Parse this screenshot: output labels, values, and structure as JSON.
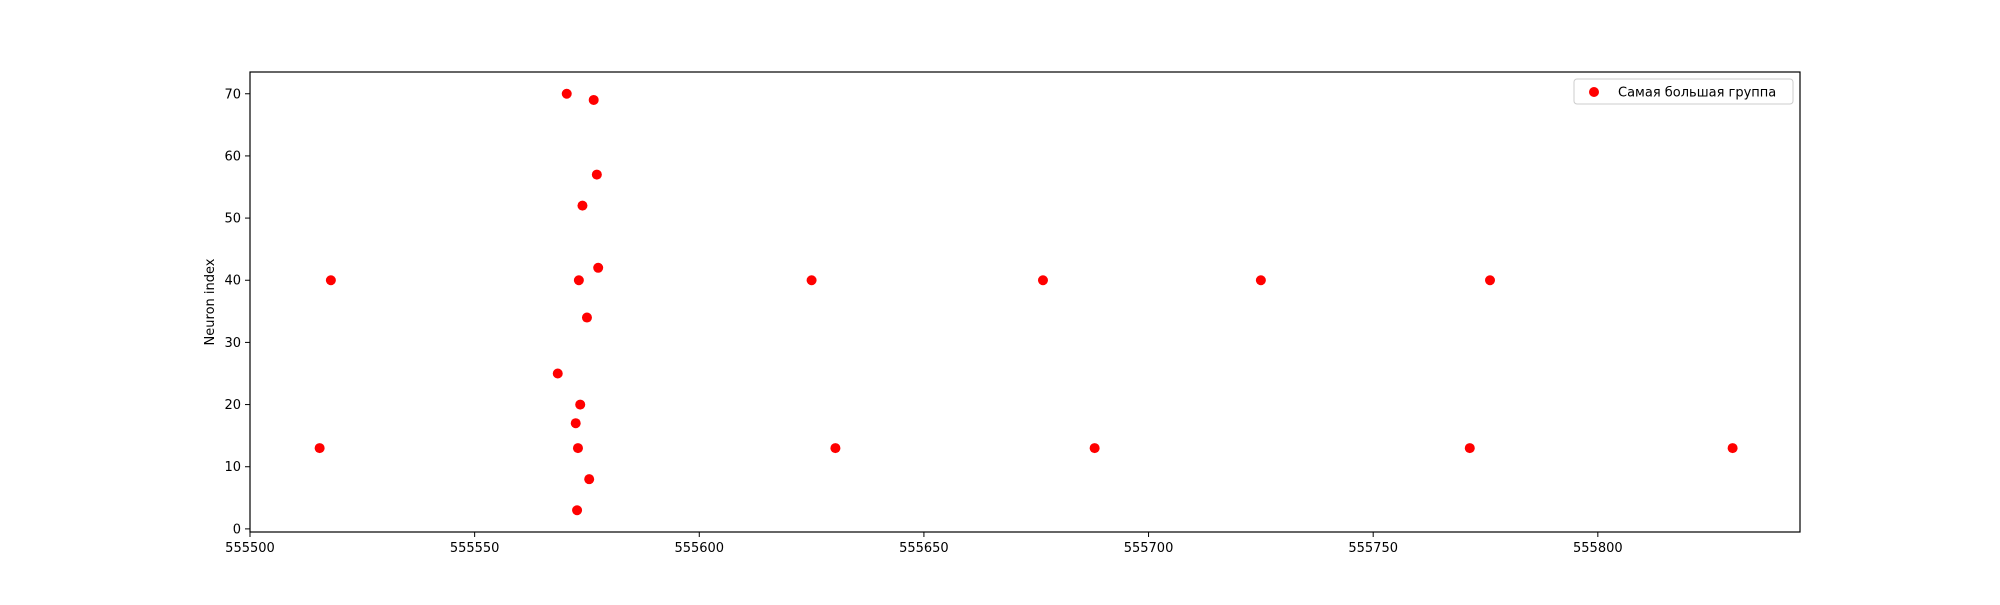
{
  "chart_data": {
    "type": "scatter",
    "title": "",
    "xlabel": "",
    "ylabel": "Neuron index",
    "xlim": [
      555500,
      555845
    ],
    "ylim": [
      -0.5,
      73.5
    ],
    "xticks": [
      555500,
      555550,
      555600,
      555650,
      555700,
      555750,
      555800
    ],
    "xtick_labels": [
      "555500",
      "555550",
      "555600",
      "555650",
      "555700",
      "555750",
      "555800"
    ],
    "yticks": [
      0,
      10,
      20,
      30,
      40,
      50,
      60,
      70
    ],
    "ytick_labels": [
      "0",
      "10",
      "20",
      "30",
      "40",
      "50",
      "60",
      "70"
    ],
    "grid": false,
    "legend": {
      "position": "top-right"
    },
    "series": [
      {
        "name": "Самая большая группа",
        "color": "#ff0000",
        "points": [
          {
            "x": 555515.5,
            "y": 13
          },
          {
            "x": 555518,
            "y": 40
          },
          {
            "x": 555568.5,
            "y": 25
          },
          {
            "x": 555570.5,
            "y": 70
          },
          {
            "x": 555572.5,
            "y": 17
          },
          {
            "x": 555572.8,
            "y": 3
          },
          {
            "x": 555573,
            "y": 13
          },
          {
            "x": 555573.2,
            "y": 40
          },
          {
            "x": 555573.5,
            "y": 20
          },
          {
            "x": 555574,
            "y": 52
          },
          {
            "x": 555575,
            "y": 34
          },
          {
            "x": 555575.5,
            "y": 8
          },
          {
            "x": 555576.5,
            "y": 69
          },
          {
            "x": 555577.2,
            "y": 57
          },
          {
            "x": 555577.5,
            "y": 42
          },
          {
            "x": 555625,
            "y": 40
          },
          {
            "x": 555630.3,
            "y": 13
          },
          {
            "x": 555676.5,
            "y": 40
          },
          {
            "x": 555688,
            "y": 13
          },
          {
            "x": 555725,
            "y": 40
          },
          {
            "x": 555771.5,
            "y": 13
          },
          {
            "x": 555776,
            "y": 40
          },
          {
            "x": 555830,
            "y": 13
          }
        ]
      }
    ]
  }
}
